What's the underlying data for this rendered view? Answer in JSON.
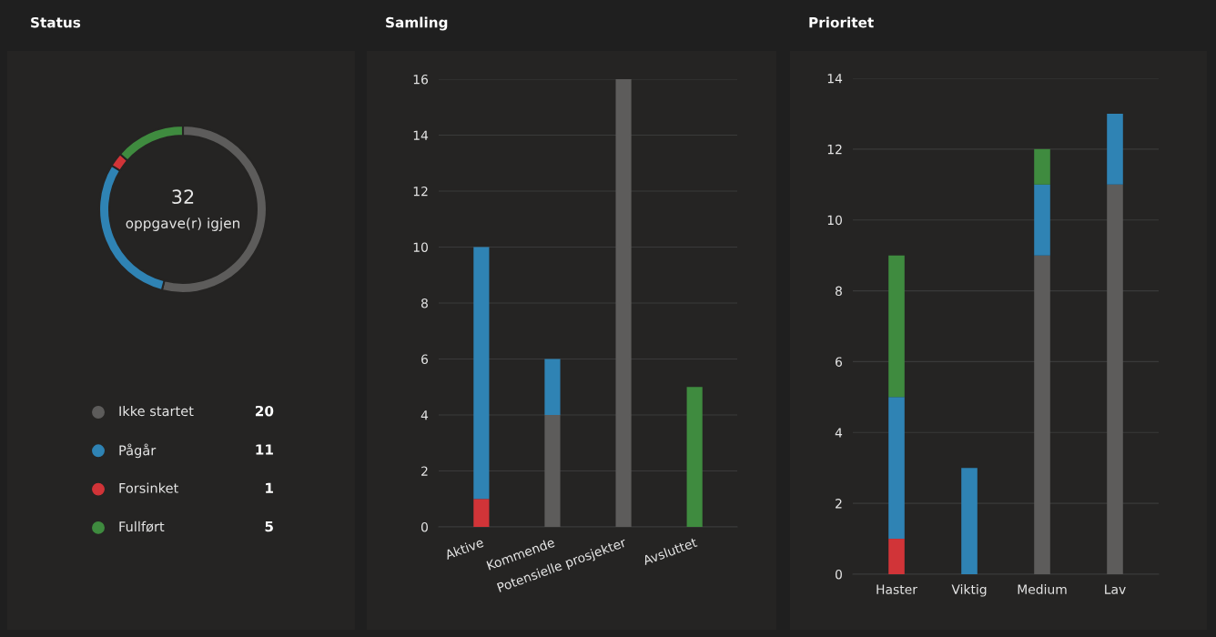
{
  "chart_data": [
    {
      "type": "donut",
      "title": "Status",
      "categories": [
        "Ikke startet",
        "Pågår",
        "Forsinket",
        "Fullført"
      ],
      "values": [
        20,
        11,
        1,
        5
      ],
      "colors": [
        "#5d5c5b",
        "#2f83b4",
        "#d13438",
        "#3f8b3f"
      ],
      "data_labels": true,
      "legend": "bottom",
      "annotations": [
        "32",
        "oppgave(r) igjen"
      ]
    },
    {
      "type": "bar",
      "title": "Samling",
      "categories": [
        "Aktive",
        "Kommende",
        "Potensielle prosjekter",
        "Avsluttet"
      ],
      "stacked": true,
      "ylim": [
        0,
        16
      ],
      "yticks": [
        0,
        2,
        4,
        6,
        8,
        10,
        12,
        14,
        16
      ],
      "grid": "y",
      "series": [
        {
          "color": "#5d5c5b",
          "values": [
            0,
            4,
            16,
            0
          ]
        },
        {
          "color": "#d13438",
          "values": [
            1,
            0,
            0,
            0
          ]
        },
        {
          "color": "#2f83b4",
          "values": [
            9,
            2,
            0,
            0
          ]
        },
        {
          "color": "#3f8b3f",
          "values": [
            0,
            0,
            0,
            5
          ]
        }
      ]
    },
    {
      "type": "bar",
      "title": "Prioritet",
      "categories": [
        "Haster",
        "Viktig",
        "Medium",
        "Lav"
      ],
      "stacked": true,
      "ylim": [
        0,
        14
      ],
      "yticks": [
        0,
        2,
        4,
        6,
        8,
        10,
        12,
        14
      ],
      "grid": "y",
      "series": [
        {
          "color": "#5d5c5b",
          "values": [
            0,
            0,
            9,
            11
          ]
        },
        {
          "color": "#d13438",
          "values": [
            1,
            0,
            0,
            0
          ]
        },
        {
          "color": "#2f83b4",
          "values": [
            4,
            3,
            2,
            2
          ]
        },
        {
          "color": "#3f8b3f",
          "values": [
            4,
            0,
            1,
            0
          ]
        }
      ]
    }
  ]
}
